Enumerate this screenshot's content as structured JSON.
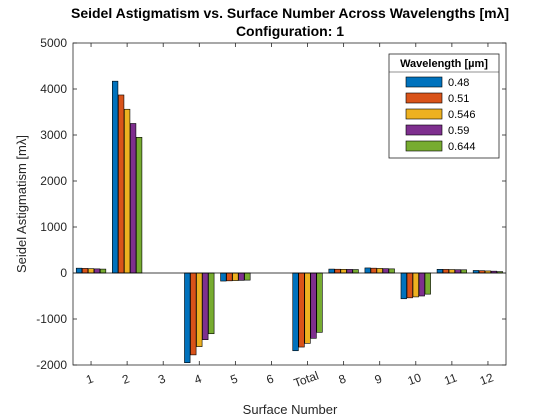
{
  "chart_data": {
    "type": "bar",
    "title": "Seidel Astigmatism vs. Surface Number Across Wavelengths [mλ]",
    "subtitle": "Configuration: 1",
    "xlabel": "Surface Number",
    "ylabel": "Seidel Astigmatism [mλ]",
    "ylim": [
      -2000,
      5000
    ],
    "yticks": [
      "-2000",
      "-1000",
      "0",
      "1000",
      "2000",
      "3000",
      "4000",
      "5000"
    ],
    "categories": [
      "1",
      "2",
      "3",
      "4",
      "5",
      "6",
      "Total",
      "8",
      "9",
      "10",
      "11",
      "12"
    ],
    "legend": {
      "title": "Wavelength [µm]",
      "position": "top-right"
    },
    "grid": false,
    "series": [
      {
        "name": "0.48",
        "color": "#0072BD",
        "values": [
          105,
          4170,
          0,
          -1950,
          -175,
          0,
          -1690,
          85,
          110,
          -560,
          80,
          55
        ]
      },
      {
        "name": "0.51",
        "color": "#D95319",
        "values": [
          100,
          3870,
          0,
          -1780,
          -170,
          0,
          -1610,
          82,
          105,
          -540,
          78,
          50
        ]
      },
      {
        "name": "0.546",
        "color": "#EDB120",
        "values": [
          95,
          3560,
          0,
          -1600,
          -165,
          0,
          -1530,
          80,
          100,
          -520,
          75,
          45
        ]
      },
      {
        "name": "0.59",
        "color": "#7E2F8E",
        "values": [
          90,
          3250,
          0,
          -1450,
          -160,
          0,
          -1420,
          78,
          95,
          -500,
          72,
          40
        ]
      },
      {
        "name": "0.644",
        "color": "#77AC30",
        "values": [
          85,
          2950,
          0,
          -1320,
          -155,
          0,
          -1290,
          75,
          90,
          -460,
          70,
          30
        ]
      }
    ]
  }
}
